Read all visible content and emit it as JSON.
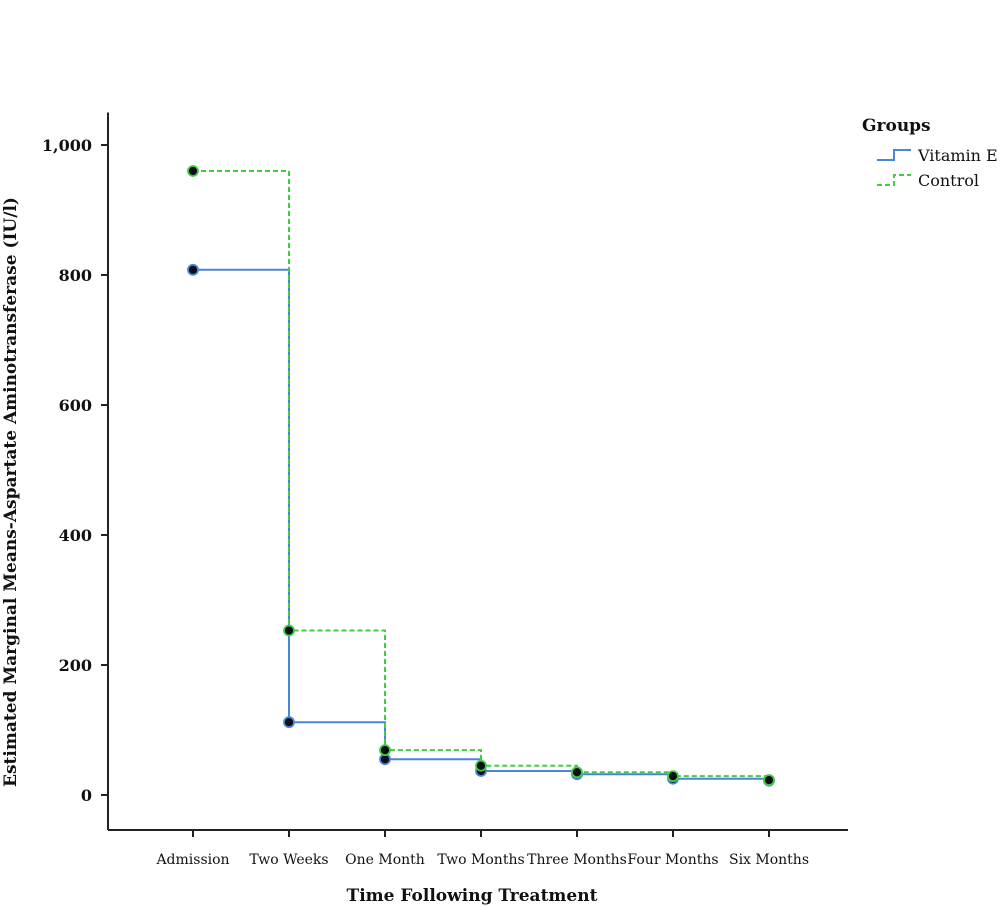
{
  "chart_data": {
    "type": "line",
    "step": true,
    "xlabel": "Time Following Treatment",
    "ylabel": "Estimated Marginal Means-Aspartate Aminotransferase (IU/l)",
    "categories": [
      "Admission",
      "Two Weeks",
      "One Month",
      "Two Months",
      "Three Months",
      "Four Months",
      "Six Months"
    ],
    "ylim": [
      -50,
      1050
    ],
    "yticks": [
      0,
      200,
      400,
      600,
      800,
      1000
    ],
    "ytick_labels": [
      "0",
      "200",
      "400",
      "600",
      "800",
      "1,000"
    ],
    "grid": false,
    "legend": {
      "title": "Groups",
      "placement": "top-right"
    },
    "series": [
      {
        "name": "Vitamin E",
        "color": "#4a86d8",
        "dash": "solid",
        "values": [
          808,
          112,
          55,
          37,
          32,
          25,
          22
        ]
      },
      {
        "name": "Control",
        "color": "#3ecf3e",
        "dash": "dashed",
        "values": [
          960,
          253,
          69,
          45,
          35,
          29,
          23
        ]
      }
    ]
  }
}
